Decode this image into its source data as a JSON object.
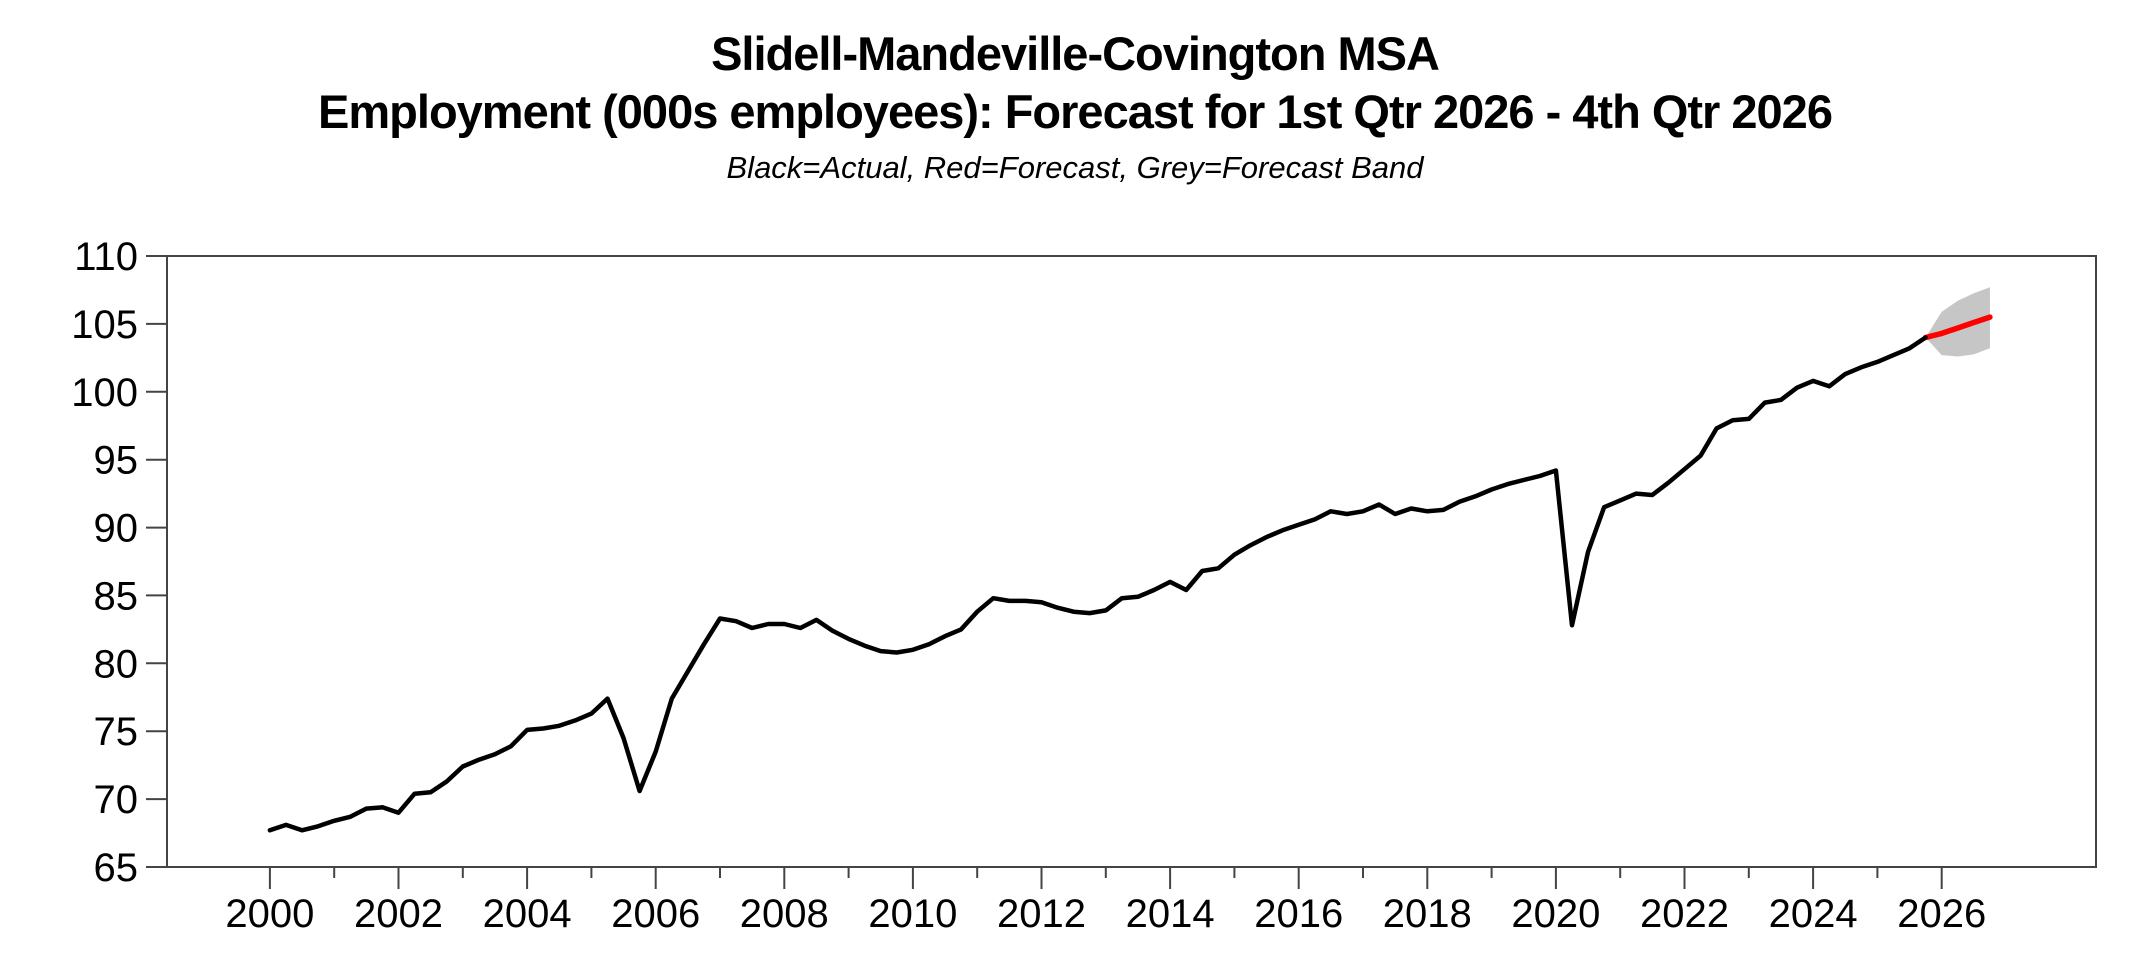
{
  "header": {
    "title_line1": "Slidell-Mandeville-Covington MSA",
    "title_line2": "Employment (000s employees): Forecast for 1st Qtr 2026 - 4th Qtr 2026",
    "subtitle": "Black=Actual, Red=Forecast, Grey=Forecast Band"
  },
  "chart_data": {
    "type": "line",
    "title": "Slidell-Mandeville-Covington MSA",
    "subtitle": "Employment (000s employees): Forecast for 1st Qtr 2026 - 4th Qtr 2026",
    "legend_note": "Black=Actual, Red=Forecast, Grey=Forecast Band",
    "xlabel": "",
    "ylabel": "",
    "frequency": "quarterly",
    "actual": {
      "name": "Actual",
      "color": "#000000",
      "x_start": 2000.0,
      "x_step": 0.25,
      "values": [
        67.7,
        68.1,
        67.7,
        68.0,
        68.4,
        68.7,
        69.3,
        69.4,
        69.0,
        70.4,
        70.5,
        71.3,
        72.4,
        72.9,
        73.3,
        73.9,
        75.1,
        75.2,
        75.4,
        75.8,
        76.3,
        77.4,
        74.5,
        70.6,
        73.5,
        77.4,
        79.4,
        81.4,
        83.3,
        83.1,
        82.6,
        82.9,
        82.9,
        82.6,
        83.2,
        82.4,
        81.8,
        81.3,
        80.9,
        80.8,
        81.0,
        81.4,
        82.0,
        82.5,
        83.8,
        84.8,
        84.6,
        84.6,
        84.5,
        84.1,
        83.8,
        83.7,
        83.9,
        84.8,
        84.9,
        85.4,
        86.0,
        85.4,
        86.8,
        87.0,
        88.0,
        88.7,
        89.3,
        89.8,
        90.2,
        90.6,
        91.2,
        91.0,
        91.2,
        91.7,
        91.0,
        91.4,
        91.2,
        91.3,
        91.9,
        92.3,
        92.8,
        93.2,
        93.5,
        93.8,
        94.2,
        82.8,
        88.2,
        91.5,
        92.0,
        92.5,
        92.4,
        93.3,
        94.3,
        95.3,
        97.3,
        97.9,
        98.0,
        99.2,
        99.4,
        100.3,
        100.8,
        100.4,
        101.3,
        101.8,
        102.2,
        102.7,
        103.2,
        104.0
      ]
    },
    "forecast": {
      "name": "Forecast",
      "color": "#ff0000",
      "x": [
        2025.75,
        2026.0,
        2026.25,
        2026.5,
        2026.75
      ],
      "values": [
        104.0,
        104.3,
        104.7,
        105.1,
        105.5
      ]
    },
    "forecast_band": {
      "name": "Forecast Band",
      "color": "#c6c6c6",
      "x": [
        2025.75,
        2026.0,
        2026.25,
        2026.5,
        2026.75
      ],
      "top": [
        104.0,
        105.9,
        106.7,
        107.25,
        107.7
      ],
      "bottom": [
        104.0,
        102.7,
        102.6,
        102.75,
        103.2
      ]
    },
    "axes": {
      "xlim": [
        1998.4,
        2028.4
      ],
      "ylim": [
        65,
        110
      ],
      "yticks": [
        65,
        70,
        75,
        80,
        85,
        90,
        95,
        100,
        105,
        110
      ],
      "xticks_major": [
        2000,
        2002,
        2004,
        2006,
        2008,
        2010,
        2012,
        2014,
        2016,
        2018,
        2020,
        2022,
        2024,
        2026
      ],
      "xticks_minor": [
        2001,
        2003,
        2005,
        2007,
        2009,
        2011,
        2013,
        2015,
        2017,
        2019,
        2021,
        2023,
        2025
      ],
      "grid": false,
      "frame_color": "#444444"
    }
  }
}
